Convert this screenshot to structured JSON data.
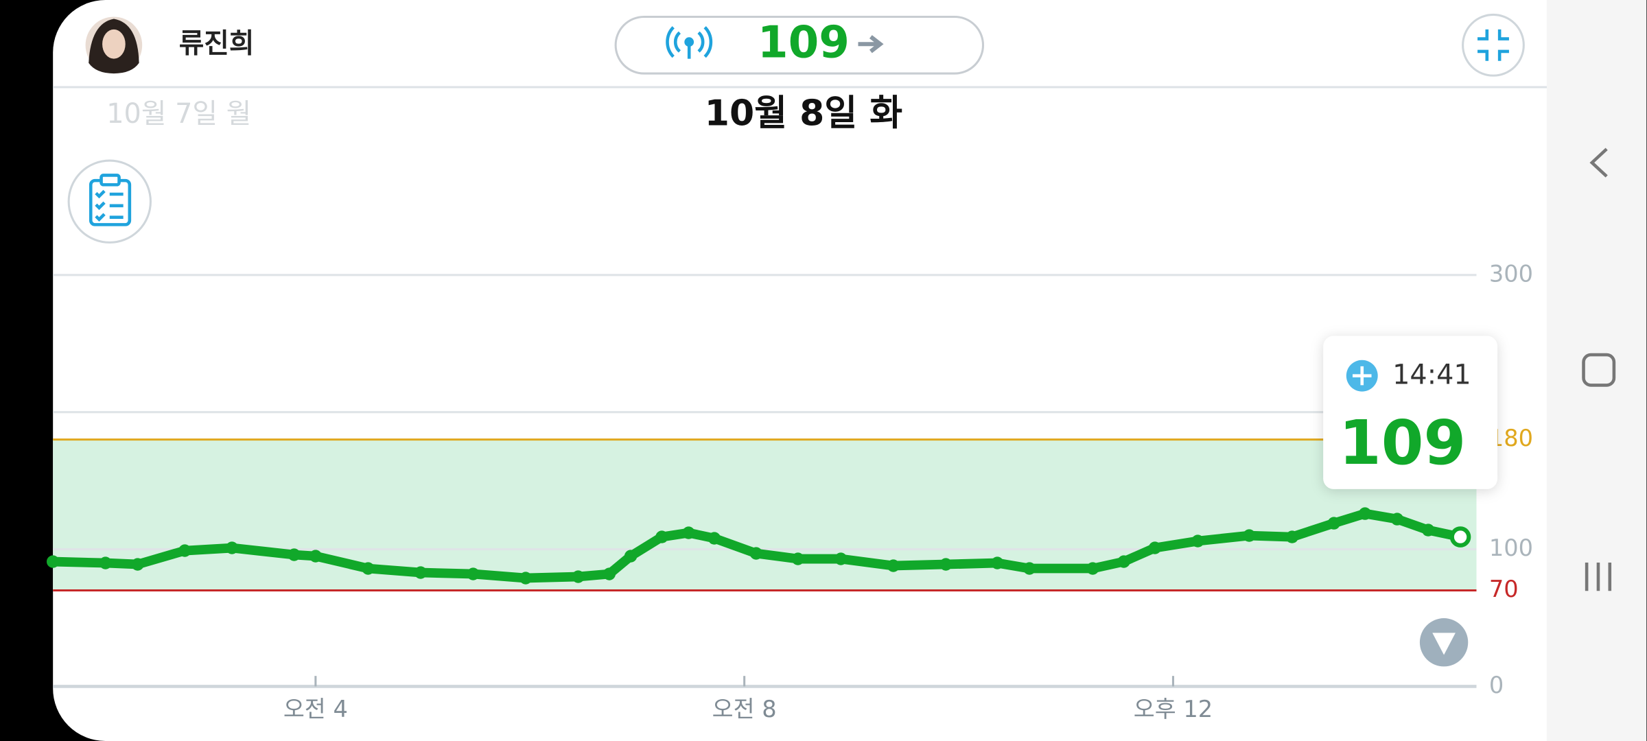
{
  "header": {
    "name": "류진희",
    "current_glucose": 109,
    "prev_date": "10월 7일 월",
    "date": "10월 8일 화"
  },
  "tooltip": {
    "time": "14:41",
    "value": 109
  },
  "chart_data": {
    "type": "line",
    "color": "#11a82a",
    "x": [
      1.55,
      2.04,
      2.34,
      2.78,
      3.22,
      3.8,
      4,
      4.49,
      4.98,
      5.47,
      5.96,
      6.45,
      6.74,
      6.94,
      7.23,
      7.48,
      7.72,
      8.11,
      8.5,
      8.9,
      9.39,
      9.88,
      10.36,
      10.66,
      11.25,
      11.54,
      11.83,
      12.23,
      12.71,
      13.11,
      13.5,
      13.79,
      14.09,
      14.38,
      14.68
    ],
    "values": [
      91,
      90,
      89,
      99,
      101,
      96,
      95,
      86,
      83,
      82,
      79,
      80,
      82,
      95,
      109,
      112,
      108,
      97,
      93,
      93,
      88,
      89,
      90,
      86,
      86,
      91,
      101,
      106,
      110,
      109,
      119,
      126,
      122,
      114,
      109
    ],
    "xlim": [
      1.55,
      14.83
    ],
    "xticks": [
      {
        "value": 4,
        "label": "오전 4"
      },
      {
        "value": 8,
        "label": "오전 8"
      },
      {
        "value": 12,
        "label": "오후 12"
      }
    ],
    "ylim": [
      0,
      300
    ],
    "yticks": [
      0,
      100,
      {
        "value": 200,
        "label": null
      },
      300
    ],
    "target_range": {
      "low": 70,
      "high": 180,
      "low_color": "#c62828",
      "high_color": "#e0a81e",
      "fill": "#d6f2e1"
    },
    "grid": true
  }
}
